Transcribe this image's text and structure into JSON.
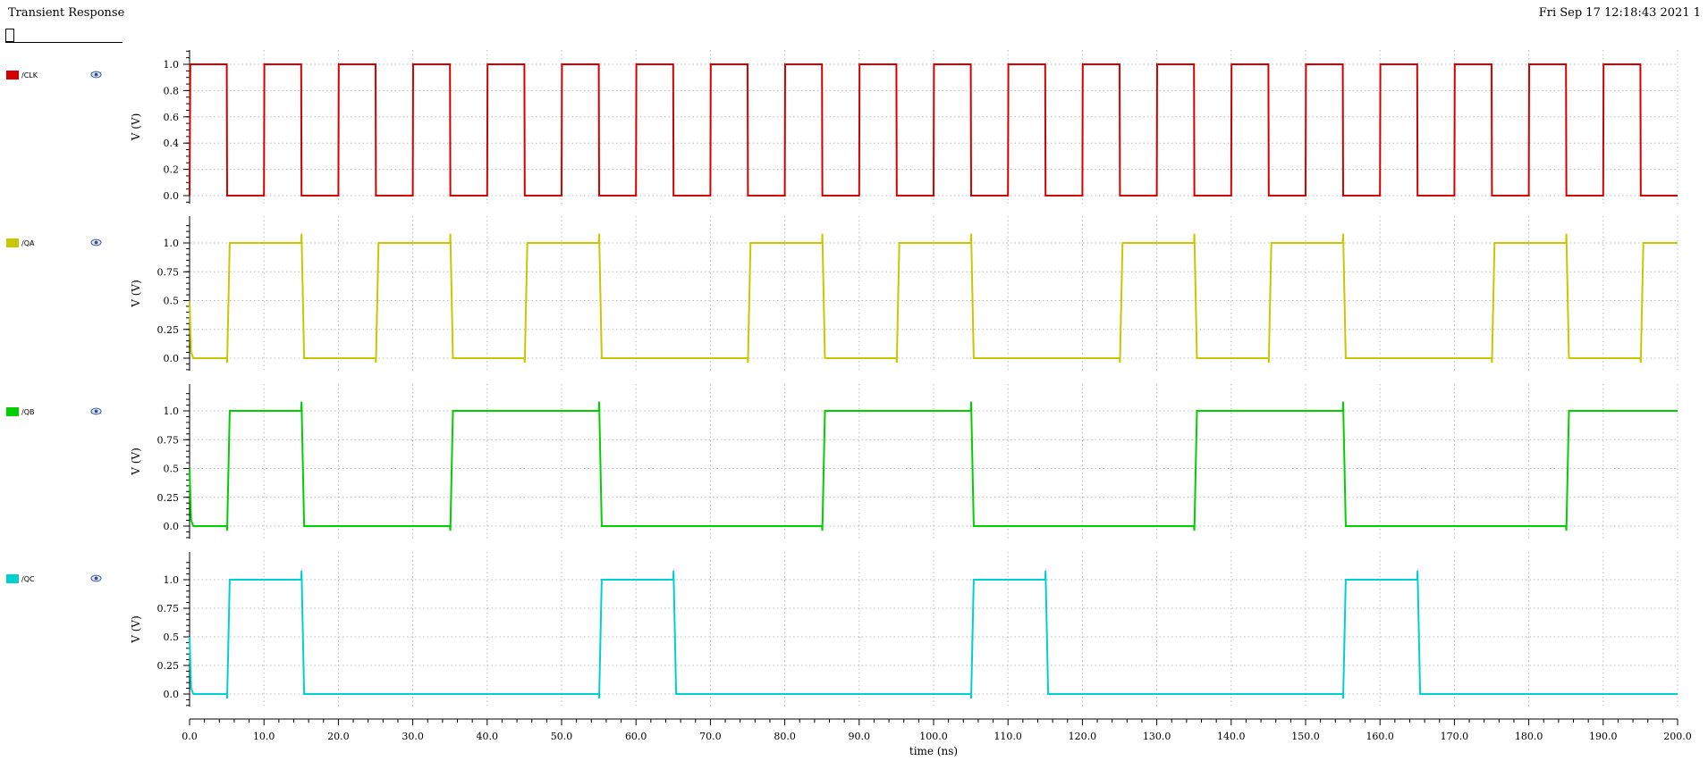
{
  "header": {
    "title": "Transient Response",
    "timestamp": "Fri Sep 17 12:18:43 2021  1"
  },
  "chart_data": {
    "type": "line",
    "title": "Transient Response",
    "x": {
      "label": "time (ns)",
      "range": [
        0,
        200
      ],
      "ticks": [
        "0.0",
        "10.0",
        "20.0",
        "30.0",
        "40.0",
        "50.0",
        "60.0",
        "70.0",
        "80.0",
        "90.0",
        "100.0",
        "110.0",
        "120.0",
        "130.0",
        "140.0",
        "150.0",
        "160.0",
        "170.0",
        "180.0",
        "190.0",
        "200.0"
      ]
    },
    "grid": true,
    "legend_placement": "left",
    "series": [
      {
        "name": "/CLK",
        "color": "#d40000",
        "ylabel": "V (V)",
        "ylim": [
          -0.05,
          1.1
        ],
        "yticks": [
          "0.0",
          "0.2",
          "0.4",
          "0.6",
          "0.8",
          "1.0"
        ],
        "points": [
          [
            0,
            0
          ],
          [
            0.1,
            1
          ],
          [
            5,
            1
          ],
          [
            5.05,
            0
          ],
          [
            10,
            0
          ],
          [
            10.05,
            1
          ],
          [
            15,
            1
          ],
          [
            15.05,
            0
          ],
          [
            20,
            0
          ],
          [
            20.05,
            1
          ],
          [
            25,
            1
          ],
          [
            25.05,
            0
          ],
          [
            30,
            0
          ],
          [
            30.05,
            1
          ],
          [
            35,
            1
          ],
          [
            35.05,
            0
          ],
          [
            40,
            0
          ],
          [
            40.05,
            1
          ],
          [
            45,
            1
          ],
          [
            45.05,
            0
          ],
          [
            50,
            0
          ],
          [
            50.05,
            1
          ],
          [
            55,
            1
          ],
          [
            55.05,
            0
          ],
          [
            60,
            0
          ],
          [
            60.05,
            1
          ],
          [
            65,
            1
          ],
          [
            65.05,
            0
          ],
          [
            70,
            0
          ],
          [
            70.05,
            1
          ],
          [
            75,
            1
          ],
          [
            75.05,
            0
          ],
          [
            80,
            0
          ],
          [
            80.05,
            1
          ],
          [
            85,
            1
          ],
          [
            85.05,
            0
          ],
          [
            90,
            0
          ],
          [
            90.05,
            1
          ],
          [
            95,
            1
          ],
          [
            95.05,
            0
          ],
          [
            100,
            0
          ],
          [
            100.05,
            1
          ],
          [
            105,
            1
          ],
          [
            105.05,
            0
          ],
          [
            110,
            0
          ],
          [
            110.05,
            1
          ],
          [
            115,
            1
          ],
          [
            115.05,
            0
          ],
          [
            120,
            0
          ],
          [
            120.05,
            1
          ],
          [
            125,
            1
          ],
          [
            125.05,
            0
          ],
          [
            130,
            0
          ],
          [
            130.05,
            1
          ],
          [
            135,
            1
          ],
          [
            135.05,
            0
          ],
          [
            140,
            0
          ],
          [
            140.05,
            1
          ],
          [
            145,
            1
          ],
          [
            145.05,
            0
          ],
          [
            150,
            0
          ],
          [
            150.05,
            1
          ],
          [
            155,
            1
          ],
          [
            155.05,
            0
          ],
          [
            160,
            0
          ],
          [
            160.05,
            1
          ],
          [
            165,
            1
          ],
          [
            165.05,
            0
          ],
          [
            170,
            0
          ],
          [
            170.05,
            1
          ],
          [
            175,
            1
          ],
          [
            175.05,
            0
          ],
          [
            180,
            0
          ],
          [
            180.05,
            1
          ],
          [
            185,
            1
          ],
          [
            185.05,
            0
          ],
          [
            190,
            0
          ],
          [
            190.05,
            1
          ],
          [
            195,
            1
          ],
          [
            195.05,
            0
          ],
          [
            200,
            0
          ]
        ]
      },
      {
        "name": "/QA",
        "color": "#c8c800",
        "ylabel": "V (V)",
        "ylim": [
          -0.15,
          1.15
        ],
        "yticks": [
          "0.0",
          "0.25",
          "0.5",
          "0.75",
          "1.0"
        ],
        "points": [
          [
            0,
            0.5
          ],
          [
            0.2,
            0.05
          ],
          [
            0.5,
            0
          ],
          [
            5,
            0
          ],
          [
            5.05,
            -0.04
          ],
          [
            5.4,
            1
          ],
          [
            15,
            1
          ],
          [
            15.05,
            1.08
          ],
          [
            15.4,
            0
          ],
          [
            25,
            0
          ],
          [
            25.05,
            -0.04
          ],
          [
            25.4,
            1
          ],
          [
            35,
            1
          ],
          [
            35.05,
            1.08
          ],
          [
            35.4,
            0
          ],
          [
            45,
            0
          ],
          [
            45.05,
            -0.04
          ],
          [
            45.4,
            1
          ],
          [
            55,
            1
          ],
          [
            55.05,
            1.08
          ],
          [
            55.4,
            0
          ],
          [
            75,
            0
          ],
          [
            75.05,
            -0.04
          ],
          [
            75.4,
            1
          ],
          [
            85,
            1
          ],
          [
            85.05,
            1.08
          ],
          [
            85.4,
            0
          ],
          [
            95,
            0
          ],
          [
            95.05,
            -0.04
          ],
          [
            95.4,
            1
          ],
          [
            105,
            1
          ],
          [
            105.05,
            1.08
          ],
          [
            105.4,
            0
          ],
          [
            125,
            0
          ],
          [
            125.05,
            -0.04
          ],
          [
            125.4,
            1
          ],
          [
            135,
            1
          ],
          [
            135.05,
            1.08
          ],
          [
            135.4,
            0
          ],
          [
            145,
            0
          ],
          [
            145.05,
            -0.04
          ],
          [
            145.4,
            1
          ],
          [
            155,
            1
          ],
          [
            155.05,
            1.08
          ],
          [
            155.4,
            0
          ],
          [
            175,
            0
          ],
          [
            175.05,
            -0.04
          ],
          [
            175.4,
            1
          ],
          [
            185,
            1
          ],
          [
            185.05,
            1.08
          ],
          [
            185.4,
            0
          ],
          [
            195,
            0
          ],
          [
            195.05,
            -0.04
          ],
          [
            195.4,
            1
          ],
          [
            200,
            1
          ]
        ]
      },
      {
        "name": "/QB",
        "color": "#00d000",
        "ylabel": "V (V)",
        "ylim": [
          -0.15,
          1.15
        ],
        "yticks": [
          "0.0",
          "0.25",
          "0.5",
          "0.75",
          "1.0"
        ],
        "points": [
          [
            0,
            0.5
          ],
          [
            0.2,
            0.05
          ],
          [
            0.5,
            0
          ],
          [
            5,
            0
          ],
          [
            5.05,
            -0.04
          ],
          [
            5.4,
            1
          ],
          [
            15,
            1
          ],
          [
            15.05,
            1.08
          ],
          [
            15.4,
            0
          ],
          [
            35,
            0
          ],
          [
            35.05,
            -0.04
          ],
          [
            35.4,
            1
          ],
          [
            55,
            1
          ],
          [
            55.05,
            1.08
          ],
          [
            55.4,
            0
          ],
          [
            85,
            0
          ],
          [
            85.05,
            -0.04
          ],
          [
            85.4,
            1
          ],
          [
            105,
            1
          ],
          [
            105.05,
            1.08
          ],
          [
            105.4,
            0
          ],
          [
            135,
            0
          ],
          [
            135.05,
            -0.04
          ],
          [
            135.4,
            1
          ],
          [
            155,
            1
          ],
          [
            155.05,
            1.08
          ],
          [
            155.4,
            0
          ],
          [
            185,
            0
          ],
          [
            185.05,
            -0.04
          ],
          [
            185.4,
            1
          ],
          [
            200,
            1
          ]
        ]
      },
      {
        "name": "/QC",
        "color": "#00d0d0",
        "ylabel": "V (V)",
        "ylim": [
          -0.15,
          1.15
        ],
        "yticks": [
          "0.0",
          "0.25",
          "0.5",
          "0.75",
          "1.0"
        ],
        "points": [
          [
            0,
            0.5
          ],
          [
            0.2,
            0.05
          ],
          [
            0.5,
            0
          ],
          [
            5,
            0
          ],
          [
            5.05,
            -0.04
          ],
          [
            5.4,
            1
          ],
          [
            15,
            1
          ],
          [
            15.05,
            1.08
          ],
          [
            15.4,
            0
          ],
          [
            55,
            0
          ],
          [
            55.05,
            -0.04
          ],
          [
            55.4,
            1
          ],
          [
            65,
            1
          ],
          [
            65.05,
            1.08
          ],
          [
            65.4,
            0
          ],
          [
            105,
            0
          ],
          [
            105.05,
            -0.04
          ],
          [
            105.4,
            1
          ],
          [
            115,
            1
          ],
          [
            115.05,
            1.08
          ],
          [
            115.4,
            0
          ],
          [
            155,
            0
          ],
          [
            155.05,
            -0.04
          ],
          [
            155.4,
            1
          ],
          [
            165,
            1
          ],
          [
            165.05,
            1.08
          ],
          [
            165.4,
            0
          ],
          [
            200,
            0
          ]
        ]
      }
    ]
  }
}
